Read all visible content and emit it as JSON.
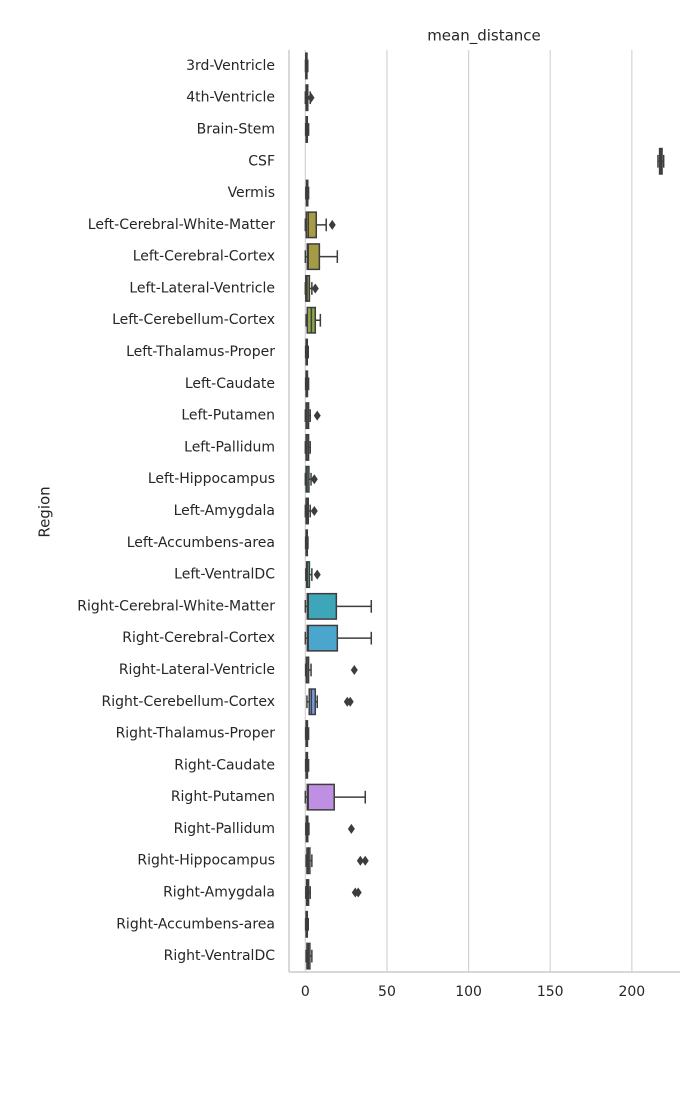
{
  "chart_data": {
    "type": "boxplot",
    "orientation": "horizontal",
    "title": "mean_distance",
    "y_label": "Region",
    "categories": [
      "3rd-Ventricle",
      "4th-Ventricle",
      "Brain-Stem",
      "CSF",
      "Vermis",
      "Left-Cerebral-White-Matter",
      "Left-Cerebral-Cortex",
      "Left-Lateral-Ventricle",
      "Left-Cerebellum-Cortex",
      "Left-Thalamus-Proper",
      "Left-Caudate",
      "Left-Putamen",
      "Left-Pallidum",
      "Left-Hippocampus",
      "Left-Amygdala",
      "Left-Accumbens-area",
      "Left-VentralDC",
      "Right-Cerebral-White-Matter",
      "Right-Cerebral-Cortex",
      "Right-Lateral-Ventricle",
      "Right-Cerebellum-Cortex",
      "Right-Thalamus-Proper",
      "Right-Caudate",
      "Right-Putamen",
      "Right-Pallidum",
      "Right-Hippocampus",
      "Right-Amygdala",
      "Right-Accumbens-area",
      "Right-VentralDC"
    ],
    "colors": [
      "#cf8a8d",
      "#cd8a76",
      "#c48e64",
      "#b89556",
      "#ac9a4c",
      "#a89b45",
      "#a39c45",
      "#9aa048",
      "#8fa54a",
      "#7fa94e",
      "#6aad57",
      "#52b066",
      "#4fb07a",
      "#4faf8a",
      "#4fae96",
      "#50ada0",
      "#51acab",
      "#3ea6b9",
      "#4aa6cc",
      "#5fa2d8",
      "#7c9ce0",
      "#969ae2",
      "#ab95e3",
      "#be8fe2",
      "#cb8dd8",
      "#d28bc9",
      "#d68bb9",
      "#d78aaa",
      "#d4899a"
    ],
    "boxes": [
      {
        "min": 0.1,
        "q1": 0.3,
        "median": 0.6,
        "q3": 1.0,
        "max": 1.5
      },
      {
        "min": 0,
        "q1": 0.5,
        "median": 1,
        "q3": 1.5,
        "max": 3,
        "outliers": [
          3.5
        ]
      },
      {
        "min": 0.2,
        "q1": 0.5,
        "median": 0.9,
        "q3": 1.2,
        "max": 2
      },
      {
        "min": 216,
        "q1": 217,
        "median": 217.8,
        "q3": 218.5,
        "max": 219.5
      },
      {
        "min": 0.3,
        "q1": 0.7,
        "median": 1.0,
        "q3": 1.5,
        "max": 2
      },
      {
        "min": 0,
        "q1": 0.6,
        "median": 1.8,
        "q3": 6.7,
        "max": 12.8,
        "outliers": [
          16.5
        ]
      },
      {
        "min": 0,
        "q1": 1.2,
        "median": 1.8,
        "q3": 8.6,
        "max": 19.6
      },
      {
        "min": 0,
        "q1": 0.3,
        "median": 1,
        "q3": 2.5,
        "max": 4,
        "outliers": [
          6.1
        ]
      },
      {
        "min": 0.5,
        "q1": 1.2,
        "median": 3.7,
        "q3": 6.1,
        "max": 9.2
      },
      {
        "min": 0.2,
        "q1": 0.5,
        "median": 0.9,
        "q3": 1.2,
        "max": 1.8
      },
      {
        "min": 0.2,
        "q1": 0.5,
        "median": 0.9,
        "q3": 1.3,
        "max": 2
      },
      {
        "min": 0,
        "q1": 0.5,
        "median": 1,
        "q3": 2,
        "max": 3,
        "outliers": [
          7.3
        ]
      },
      {
        "min": 0,
        "q1": 0.5,
        "median": 1,
        "q3": 2,
        "max": 3
      },
      {
        "min": 0,
        "q1": 0.5,
        "median": 1,
        "q3": 2.2,
        "max": 3.5,
        "outliers": [
          5.5
        ]
      },
      {
        "min": 0,
        "q1": 0.5,
        "median": 1,
        "q3": 1.8,
        "max": 3,
        "outliers": [
          5.5
        ]
      },
      {
        "min": 0.2,
        "q1": 0.5,
        "median": 0.8,
        "q3": 1.2,
        "max": 1.6
      },
      {
        "min": 0.3,
        "q1": 0.8,
        "median": 1.2,
        "q3": 2.5,
        "max": 4,
        "outliers": [
          7.3
        ]
      },
      {
        "min": 0,
        "q1": 1.2,
        "median": 1.8,
        "q3": 19,
        "max": 40.4
      },
      {
        "min": 0,
        "q1": 1.2,
        "median": 1.8,
        "q3": 19.6,
        "max": 40.4
      },
      {
        "min": 0.2,
        "q1": 0.6,
        "median": 1,
        "q3": 2,
        "max": 3.5,
        "outliers": [
          30
        ]
      },
      {
        "min": 1,
        "q1": 2.4,
        "median": 3.7,
        "q3": 6.1,
        "max": 7.3,
        "outliers": [
          25.7,
          27.5
        ]
      },
      {
        "min": 0.2,
        "q1": 0.5,
        "median": 0.9,
        "q3": 1.3,
        "max": 2
      },
      {
        "min": 0.2,
        "q1": 0.5,
        "median": 0.9,
        "q3": 1.3,
        "max": 2
      },
      {
        "min": 0,
        "q1": 1.2,
        "median": 1.8,
        "q3": 17.7,
        "max": 36.7
      },
      {
        "min": 0.3,
        "q1": 0.6,
        "median": 1,
        "q3": 1.5,
        "max": 2.2,
        "outliers": [
          28.2
        ]
      },
      {
        "min": 0.5,
        "q1": 1,
        "median": 1.8,
        "q3": 2.8,
        "max": 4,
        "outliers": [
          33.7,
          36.7
        ]
      },
      {
        "min": 0.3,
        "q1": 0.8,
        "median": 1.2,
        "q3": 2,
        "max": 3,
        "outliers": [
          30.6,
          32.4
        ]
      },
      {
        "min": 0.2,
        "q1": 0.5,
        "median": 0.8,
        "q3": 1.2,
        "max": 1.8
      },
      {
        "min": 0.5,
        "q1": 1,
        "median": 1.8,
        "q3": 2.8,
        "max": 4
      }
    ],
    "xlim": [
      -10,
      229.5
    ],
    "xticks": [
      0,
      50,
      100,
      150,
      200
    ],
    "grid": true
  }
}
